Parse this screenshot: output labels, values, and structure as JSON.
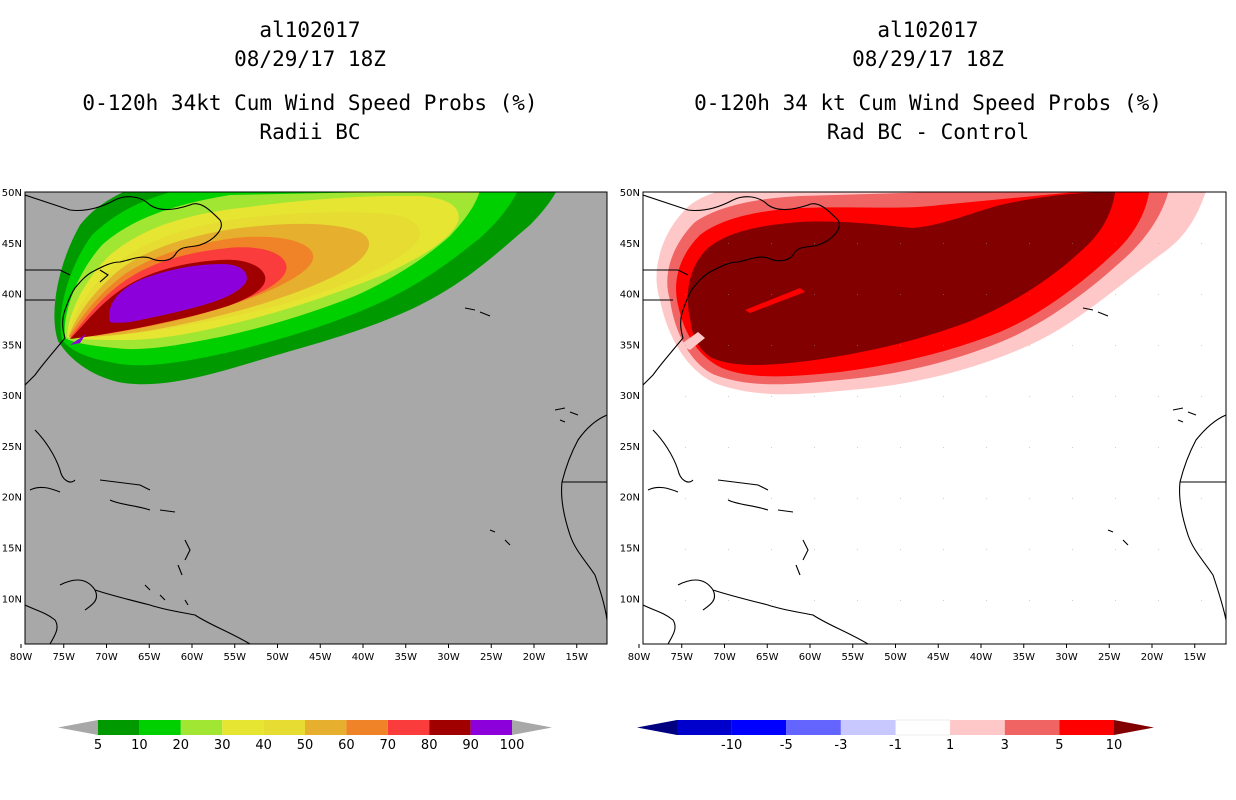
{
  "left_panel": {
    "storm_id": "al102017",
    "datetime": "08/29/17 18Z",
    "title": "0-120h 34kt Cum Wind Speed Probs (%)",
    "subtitle": "Radii BC",
    "background_color": "#a8a8a8",
    "colorbar": {
      "labels": [
        "5",
        "10",
        "20",
        "30",
        "40",
        "50",
        "60",
        "70",
        "80",
        "90",
        "100"
      ],
      "colors": [
        "#009a00",
        "#00d000",
        "#a0e632",
        "#e6e632",
        "#e6dc32",
        "#e6af2d",
        "#f08228",
        "#fa3c3c",
        "#a00000",
        "#8c00dc"
      ],
      "under_color": "#a8a8a8",
      "over_color": "#a8a8a8"
    }
  },
  "right_panel": {
    "storm_id": "al102017",
    "datetime": "08/29/17 18Z",
    "title": "0-120h 34 kt Cum Wind Speed Probs (%)",
    "subtitle": "Rad BC - Control",
    "background_color": "#ffffff",
    "colorbar": {
      "labels": [
        "-10",
        "-5",
        "-3",
        "-1",
        "1",
        "3",
        "5",
        "10"
      ],
      "colors": [
        "#0000cd",
        "#0000ff",
        "#6464ff",
        "#c8c8ff",
        "#ffffff",
        "#ffc8c8",
        "#f06464",
        "#ff0000"
      ],
      "under_color": "#000080",
      "over_color": "#820000"
    }
  },
  "axes": {
    "lon_labels": [
      "80W",
      "75W",
      "70W",
      "65W",
      "60W",
      "55W",
      "50W",
      "45W",
      "40W",
      "35W",
      "30W",
      "25W",
      "20W",
      "15W"
    ],
    "lat_labels": [
      "10N",
      "15N",
      "20N",
      "25N",
      "30N",
      "35N",
      "40N",
      "45N",
      "50N"
    ],
    "lon_range": [
      -80,
      -12
    ],
    "lat_range": [
      5.5,
      50
    ]
  }
}
